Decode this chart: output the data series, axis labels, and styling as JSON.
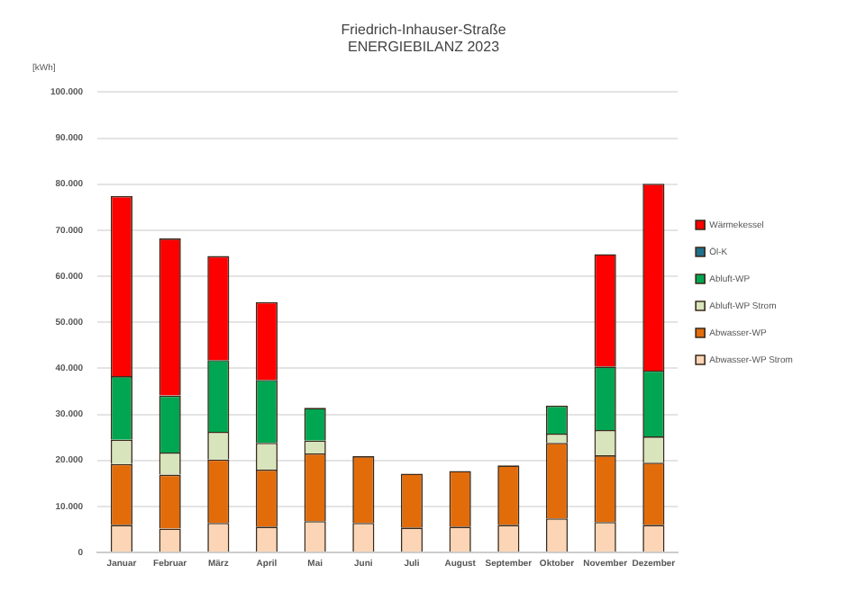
{
  "chart_data": {
    "type": "bar",
    "title": "Friedrich-Inhauser-Straße",
    "subtitle": "ENERGIEBILANZ 2023",
    "ylabel": "[kWh]",
    "stacked": true,
    "grid": "y",
    "legend": "right",
    "categories": [
      "Januar",
      "Februar",
      "März",
      "April",
      "Mai",
      "Juni",
      "Juli",
      "August",
      "September",
      "Oktober",
      "November",
      "Dezember"
    ],
    "ylim": [
      0,
      100000
    ],
    "yticks": [
      {
        "value": 0,
        "label": "0"
      },
      {
        "value": 10000,
        "label": "10.000"
      },
      {
        "value": 20000,
        "label": "20.000"
      },
      {
        "value": 30000,
        "label": "30.000"
      },
      {
        "value": 40000,
        "label": "40.000"
      },
      {
        "value": 50000,
        "label": "50.000"
      },
      {
        "value": 60000,
        "label": "60.000"
      },
      {
        "value": 70000,
        "label": "70.000"
      },
      {
        "value": 80000,
        "label": "80.000"
      },
      {
        "value": 90000,
        "label": "90.000"
      },
      {
        "value": 100000,
        "label": "100.000"
      }
    ],
    "series": [
      {
        "name": "Abwasser-WP Strom",
        "color": "#fbd5b5",
        "values": [
          6000,
          5200,
          6400,
          5600,
          6800,
          6400,
          5400,
          5600,
          6000,
          7400,
          6600,
          6000
        ]
      },
      {
        "name": "Abwasser-WP",
        "color": "#e36c0a",
        "values": [
          13200,
          11700,
          13800,
          12400,
          14700,
          14500,
          11700,
          12100,
          12900,
          16400,
          14500,
          13500
        ]
      },
      {
        "name": "Abluft-WP Strom",
        "color": "#d8e4bc",
        "values": [
          5300,
          4800,
          6000,
          5800,
          2800,
          0,
          null,
          0,
          0,
          2000,
          5500,
          5700
        ]
      },
      {
        "name": "Abluft-WP",
        "color": "#00a651",
        "values": [
          13800,
          12400,
          15600,
          13700,
          7100,
          0,
          0,
          0,
          0,
          6100,
          13800,
          14300
        ]
      },
      {
        "name": "Öl-K",
        "color": "#1f6f8b",
        "values": [
          0,
          0,
          0,
          0,
          0,
          0,
          0,
          0,
          0,
          0,
          0,
          0
        ]
      },
      {
        "name": "Wärmekessel",
        "color": "#ff0000",
        "values": [
          39100,
          34100,
          22600,
          16900,
          0,
          0,
          0,
          0,
          0,
          0,
          24400,
          40600
        ]
      }
    ]
  }
}
